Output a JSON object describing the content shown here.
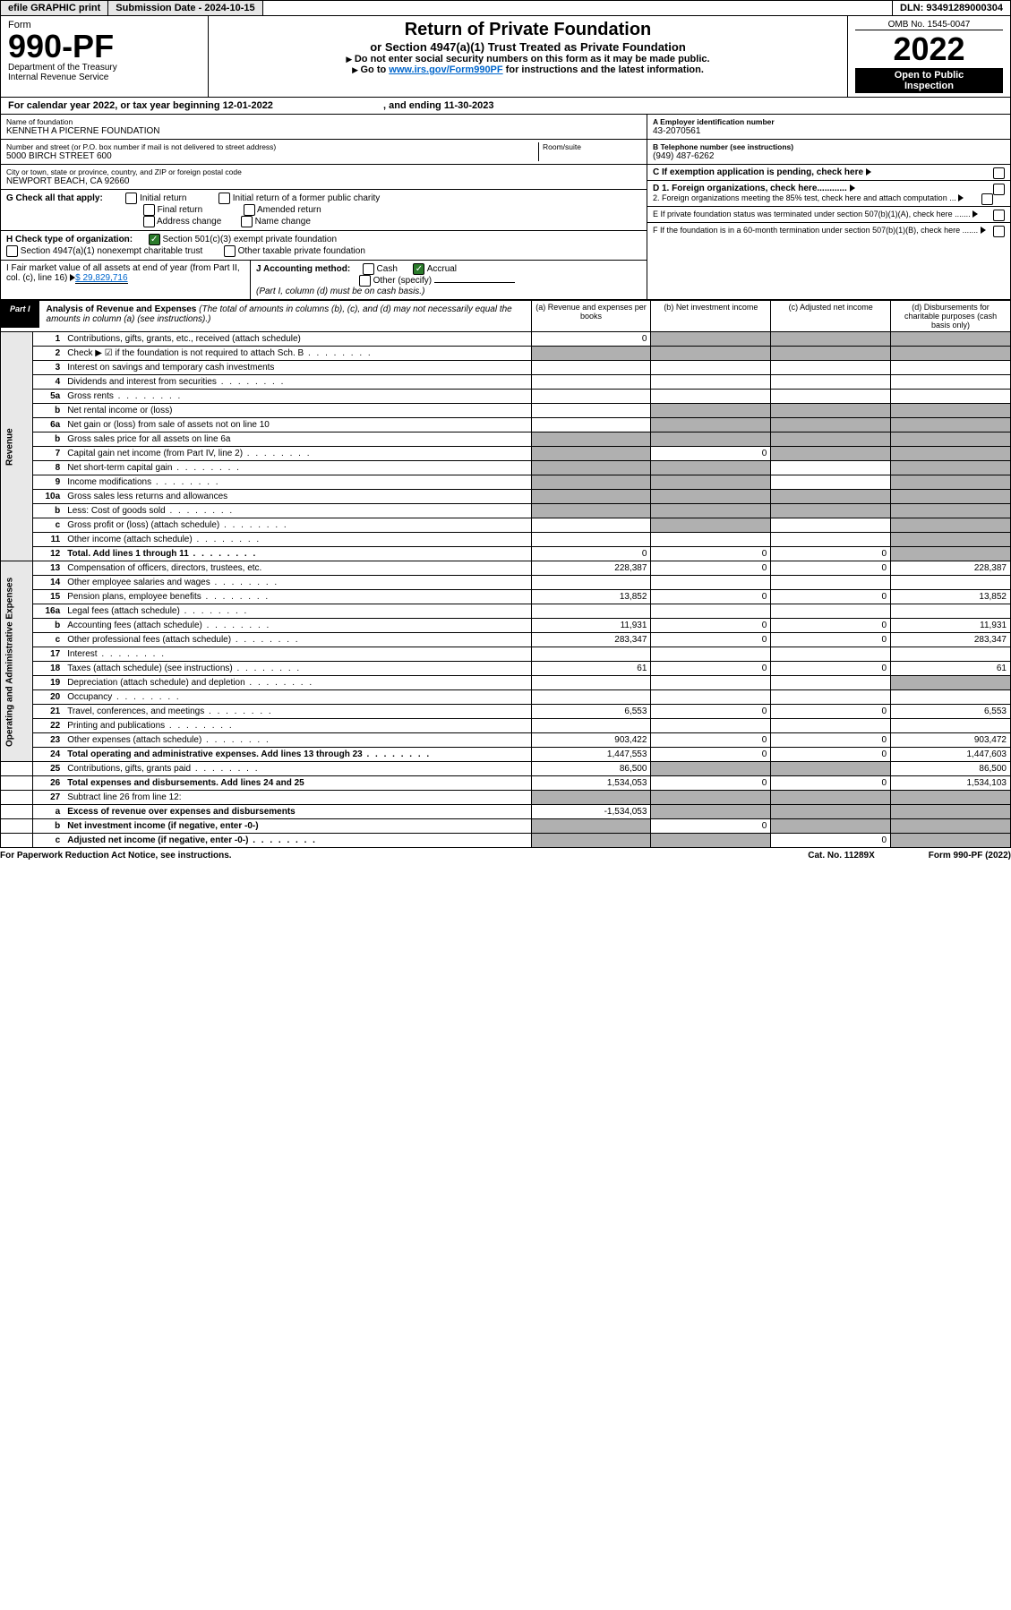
{
  "hdr": {
    "efile": "efile GRAPHIC print",
    "subLbl": "Submission Date - ",
    "subDate": "2024-10-15",
    "dlnLbl": "DLN: ",
    "dln": "93491289000304"
  },
  "top": {
    "form": "Form",
    "formNo": "990-PF",
    "dept": "Department of the Treasury",
    "irs": "Internal Revenue Service",
    "title": "Return of Private Foundation",
    "sub": "or Section 4947(a)(1) Trust Treated as Private Foundation",
    "warn": "Do not enter social security numbers on this form as it may be made public.",
    "go": "Go to ",
    "url": "www.irs.gov/Form990PF",
    "urlTail": " for instructions and the latest information.",
    "omb": "OMB No. 1545-0047",
    "yr": "2022",
    "open": "Open to Public",
    "insp": "Inspection"
  },
  "cal": {
    "txt": "For calendar year 2022, or tax year beginning ",
    "begin": "12-01-2022",
    "mid": " , and ending ",
    "end": "11-30-2023"
  },
  "entity": {
    "nameLbl": "Name of foundation",
    "name": "KENNETH A PICERNE FOUNDATION",
    "addrLbl": "Number and street (or P.O. box number if mail is not delivered to street address)",
    "addr": "5000 BIRCH STREET 600",
    "roomLbl": "Room/suite",
    "cityLbl": "City or town, state or province, country, and ZIP or foreign postal code",
    "city": "NEWPORT BEACH, CA  92660",
    "einLbl": "A Employer identification number",
    "ein": "43-2070561",
    "telLbl": "B Telephone number (see instructions)",
    "tel": "(949) 487-6262",
    "cLbl": "C If exemption application is pending, check here"
  },
  "G": {
    "lead": "G Check all that apply:",
    "o": [
      "Initial return",
      "Final return",
      "Address change",
      "Initial return of a former public charity",
      "Amended return",
      "Name change"
    ]
  },
  "H": {
    "lead": "H Check type of organization:",
    "o": [
      "Section 501(c)(3) exempt private foundation",
      "Section 4947(a)(1) nonexempt charitable trust",
      "Other taxable private foundation"
    ]
  },
  "I": {
    "lead": "I Fair market value of all assets at end of year (from Part II, col. (c), line 16) ",
    "val": "$ 29,829,716"
  },
  "J": {
    "lead": "J Accounting method:",
    "o": [
      "Cash",
      "Accrual",
      "Other (specify)"
    ],
    "note": "(Part I, column (d) must be on cash basis.)"
  },
  "D": {
    "d1": "D 1. Foreign organizations, check here............",
    "d2": "2. Foreign organizations meeting the 85% test, check here and attach computation ..."
  },
  "E": "E  If private foundation status was terminated under section 507(b)(1)(A), check here .......",
  "F": "F  If the foundation is in a 60-month termination under section 507(b)(1)(B), check here .......",
  "part1": {
    "tag": "Part I",
    "title": "Analysis of Revenue and Expenses ",
    "tail": "(The total of amounts in columns (b), (c), and (d) may not necessarily equal the amounts in column (a) (see instructions).)",
    "cols": [
      "(a) Revenue and expenses per books",
      "(b) Net investment income",
      "(c) Adjusted net income",
      "(d) Disbursements for charitable purposes (cash basis only)"
    ]
  },
  "sides": {
    "rev": "Revenue",
    "exp": "Operating and Administrative Expenses"
  },
  "rows": [
    {
      "n": "1",
      "t": "Contributions, gifts, grants, etc., received (attach schedule)",
      "a": "0",
      "b": "s",
      "c": "s",
      "d": "s"
    },
    {
      "n": "2",
      "t": "Check ▶ ☑ if the foundation is not required to attach Sch. B",
      "dots": 1,
      "a": "s",
      "b": "s",
      "c": "s",
      "d": "s"
    },
    {
      "n": "3",
      "t": "Interest on savings and temporary cash investments"
    },
    {
      "n": "4",
      "t": "Dividends and interest from securities",
      "dots": 1
    },
    {
      "n": "5a",
      "t": "Gross rents",
      "dots": 1
    },
    {
      "n": "b",
      "t": "Net rental income or (loss)",
      "b": "s",
      "c": "s",
      "d": "s"
    },
    {
      "n": "6a",
      "t": "Net gain or (loss) from sale of assets not on line 10",
      "b": "s",
      "c": "s",
      "d": "s"
    },
    {
      "n": "b",
      "t": "Gross sales price for all assets on line 6a",
      "a": "s",
      "b": "s",
      "c": "s",
      "d": "s"
    },
    {
      "n": "7",
      "t": "Capital gain net income (from Part IV, line 2)",
      "dots": 1,
      "a": "s",
      "b": "0",
      "c": "s",
      "d": "s"
    },
    {
      "n": "8",
      "t": "Net short-term capital gain",
      "dots": 1,
      "a": "s",
      "b": "s",
      "d": "s"
    },
    {
      "n": "9",
      "t": "Income modifications",
      "dots": 1,
      "a": "s",
      "b": "s",
      "d": "s"
    },
    {
      "n": "10a",
      "t": "Gross sales less returns and allowances",
      "a": "s",
      "b": "s",
      "c": "s",
      "d": "s"
    },
    {
      "n": "b",
      "t": "Less: Cost of goods sold",
      "dots": 1,
      "a": "s",
      "b": "s",
      "c": "s",
      "d": "s"
    },
    {
      "n": "c",
      "t": "Gross profit or (loss) (attach schedule)",
      "dots": 1,
      "b": "s",
      "d": "s"
    },
    {
      "n": "11",
      "t": "Other income (attach schedule)",
      "dots": 1,
      "d": "s"
    },
    {
      "n": "12",
      "t": "Total. Add lines 1 through 11",
      "bold": 1,
      "dots": 1,
      "a": "0",
      "b": "0",
      "c": "0",
      "d": "s"
    },
    {
      "n": "13",
      "t": "Compensation of officers, directors, trustees, etc.",
      "a": "228,387",
      "b": "0",
      "c": "0",
      "d": "228,387"
    },
    {
      "n": "14",
      "t": "Other employee salaries and wages",
      "dots": 1
    },
    {
      "n": "15",
      "t": "Pension plans, employee benefits",
      "dots": 1,
      "a": "13,852",
      "b": "0",
      "c": "0",
      "d": "13,852"
    },
    {
      "n": "16a",
      "t": "Legal fees (attach schedule)",
      "dots": 1
    },
    {
      "n": "b",
      "t": "Accounting fees (attach schedule)",
      "dots": 1,
      "a": "11,931",
      "b": "0",
      "c": "0",
      "d": "11,931"
    },
    {
      "n": "c",
      "t": "Other professional fees (attach schedule)",
      "dots": 1,
      "a": "283,347",
      "b": "0",
      "c": "0",
      "d": "283,347"
    },
    {
      "n": "17",
      "t": "Interest",
      "dots": 1
    },
    {
      "n": "18",
      "t": "Taxes (attach schedule) (see instructions)",
      "dots": 1,
      "a": "61",
      "b": "0",
      "c": "0",
      "d": "61"
    },
    {
      "n": "19",
      "t": "Depreciation (attach schedule) and depletion",
      "dots": 1,
      "d": "s"
    },
    {
      "n": "20",
      "t": "Occupancy",
      "dots": 1
    },
    {
      "n": "21",
      "t": "Travel, conferences, and meetings",
      "dots": 1,
      "a": "6,553",
      "b": "0",
      "c": "0",
      "d": "6,553"
    },
    {
      "n": "22",
      "t": "Printing and publications",
      "dots": 1
    },
    {
      "n": "23",
      "t": "Other expenses (attach schedule)",
      "dots": 1,
      "a": "903,422",
      "b": "0",
      "c": "0",
      "d": "903,472"
    },
    {
      "n": "24",
      "t": "Total operating and administrative expenses. Add lines 13 through 23",
      "bold": 1,
      "dots": 1,
      "a": "1,447,553",
      "b": "0",
      "c": "0",
      "d": "1,447,603"
    },
    {
      "n": "25",
      "t": "Contributions, gifts, grants paid",
      "dots": 1,
      "a": "86,500",
      "b": "s",
      "c": "s",
      "d": "86,500"
    },
    {
      "n": "26",
      "t": "Total expenses and disbursements. Add lines 24 and 25",
      "bold": 1,
      "a": "1,534,053",
      "b": "0",
      "c": "0",
      "d": "1,534,103"
    },
    {
      "n": "27",
      "t": "Subtract line 26 from line 12:",
      "a": "s",
      "b": "s",
      "c": "s",
      "d": "s"
    },
    {
      "n": "a",
      "t": "Excess of revenue over expenses and disbursements",
      "bold": 1,
      "a": "-1,534,053",
      "b": "s",
      "c": "s",
      "d": "s"
    },
    {
      "n": "b",
      "t": "Net investment income (if negative, enter -0-)",
      "bold": 1,
      "a": "s",
      "b": "0",
      "c": "s",
      "d": "s"
    },
    {
      "n": "c",
      "t": "Adjusted net income (if negative, enter -0-)",
      "bold": 1,
      "dots": 1,
      "a": "s",
      "b": "s",
      "c": "0",
      "d": "s"
    }
  ],
  "ftr": {
    "l": "For Paperwork Reduction Act Notice, see instructions.",
    "m": "Cat. No. 11289X",
    "r": "Form 990-PF (2022)"
  }
}
